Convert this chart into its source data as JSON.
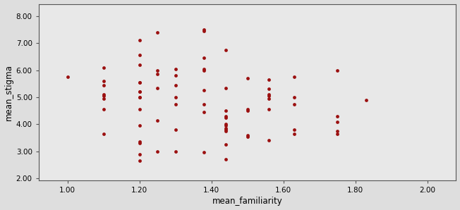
{
  "title": "",
  "xlabel": "mean_familiarity",
  "ylabel": "mean_stigma",
  "xlim": [
    0.92,
    2.08
  ],
  "ylim": [
    1.92,
    8.45
  ],
  "xticks": [
    1.0,
    1.2,
    1.4,
    1.6,
    1.8,
    2.0
  ],
  "yticks": [
    2.0,
    3.0,
    4.0,
    5.0,
    6.0,
    7.0,
    8.0
  ],
  "background_color": "#dedede",
  "plot_bg_color": "#e8e8e8",
  "dot_color": "#9b1010",
  "dot_size": 12,
  "scatter_x": [
    1.0,
    1.1,
    1.1,
    1.1,
    1.1,
    1.1,
    1.1,
    1.1,
    1.1,
    1.2,
    1.2,
    1.2,
    1.2,
    1.2,
    1.2,
    1.2,
    1.2,
    1.2,
    1.2,
    1.2,
    1.2,
    1.2,
    1.2,
    1.2,
    1.25,
    1.25,
    1.25,
    1.25,
    1.25,
    1.25,
    1.3,
    1.3,
    1.3,
    1.3,
    1.3,
    1.3,
    1.3,
    1.38,
    1.38,
    1.38,
    1.38,
    1.38,
    1.38,
    1.38,
    1.38,
    1.38,
    1.44,
    1.44,
    1.44,
    1.44,
    1.44,
    1.44,
    1.44,
    1.44,
    1.44,
    1.44,
    1.44,
    1.44,
    1.5,
    1.5,
    1.5,
    1.5,
    1.5,
    1.56,
    1.56,
    1.56,
    1.56,
    1.56,
    1.56,
    1.56,
    1.63,
    1.63,
    1.63,
    1.63,
    1.63,
    1.75,
    1.75,
    1.75,
    1.75,
    1.75,
    1.83
  ],
  "scatter_y": [
    5.75,
    6.1,
    5.6,
    5.45,
    5.1,
    5.05,
    4.95,
    4.55,
    3.65,
    7.1,
    6.55,
    6.2,
    5.55,
    5.55,
    5.2,
    5.2,
    5.0,
    5.0,
    4.55,
    3.95,
    3.35,
    3.3,
    2.9,
    2.65,
    7.4,
    6.0,
    5.85,
    5.35,
    4.15,
    3.0,
    6.05,
    5.8,
    5.45,
    5.0,
    4.75,
    3.8,
    3.0,
    7.5,
    7.45,
    6.45,
    6.05,
    6.0,
    5.25,
    4.75,
    4.45,
    2.98,
    6.75,
    5.35,
    4.5,
    4.3,
    4.25,
    4.0,
    3.95,
    3.85,
    3.8,
    3.75,
    3.25,
    2.7,
    5.7,
    4.55,
    4.5,
    3.6,
    3.55,
    5.65,
    5.3,
    5.1,
    5.05,
    4.95,
    4.55,
    3.4,
    5.75,
    5.0,
    4.75,
    3.8,
    3.65,
    6.0,
    4.3,
    4.1,
    3.75,
    3.65,
    4.9
  ],
  "tick_label_size": 7.5,
  "axis_label_size": 8.5
}
